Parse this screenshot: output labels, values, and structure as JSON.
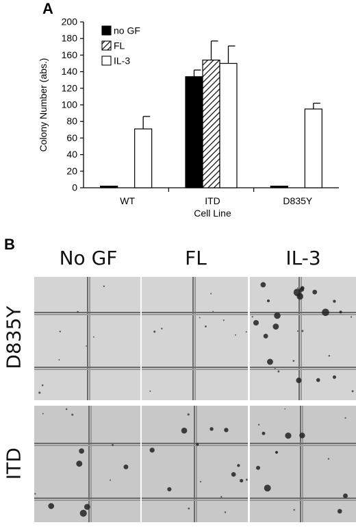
{
  "panels": {
    "a": "A",
    "b": "B"
  },
  "chart_data": {
    "type": "bar",
    "title": "",
    "xlabel": "Cell Line",
    "ylabel": "Colony Number (abs.)",
    "ylim": [
      0,
      200
    ],
    "yticks": [
      0,
      20,
      40,
      60,
      80,
      100,
      120,
      140,
      160,
      180,
      200
    ],
    "categories": [
      "WT",
      "ITD",
      "D835Y"
    ],
    "legend_position": "top-left",
    "series": [
      {
        "name": "no GF",
        "fill": "solid-black",
        "values": [
          2,
          134,
          2
        ],
        "errors": [
          0,
          8,
          0
        ]
      },
      {
        "name": "FL",
        "fill": "hatched",
        "values": [
          null,
          154,
          null
        ],
        "errors": [
          null,
          23,
          null
        ]
      },
      {
        "name": "IL-3",
        "fill": "white",
        "values": [
          71,
          150,
          95
        ],
        "errors": [
          15,
          21,
          7
        ]
      }
    ]
  },
  "micrographs": {
    "columns": [
      "No GF",
      "FL",
      "IL-3"
    ],
    "rows": [
      "D835Y",
      "ITD"
    ]
  }
}
